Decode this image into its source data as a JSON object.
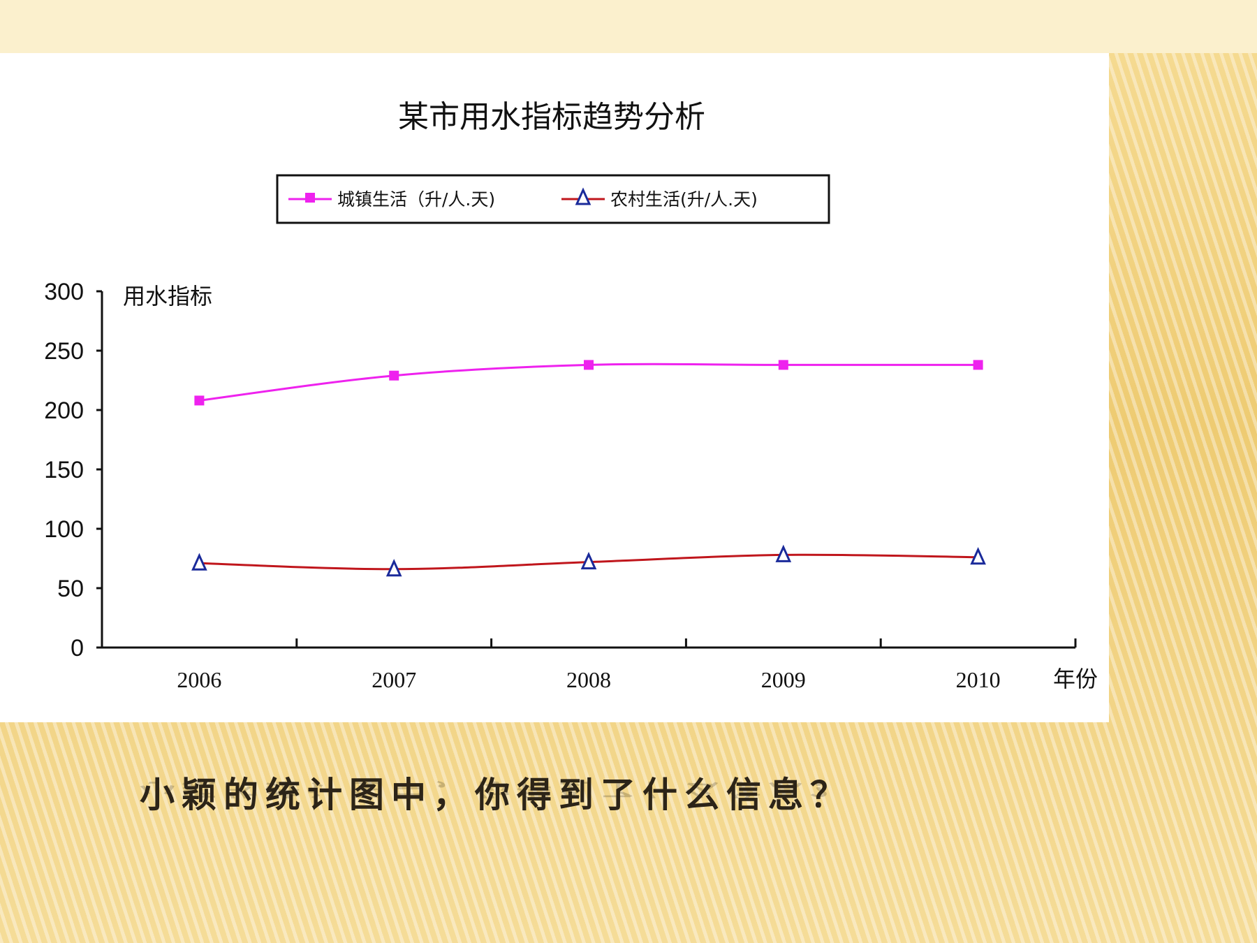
{
  "question": "小颖的统计图中，你得到了什么信息？",
  "chart_data": {
    "type": "line",
    "title": "某市用水指标趋势分析",
    "ylabel": "用水指标",
    "xlabel": "年份",
    "x": [
      "2006",
      "2007",
      "2008",
      "2009",
      "2010"
    ],
    "yticks": [
      0,
      50,
      100,
      150,
      200,
      250,
      300
    ],
    "ylim": [
      0,
      300
    ],
    "grid": false,
    "legend_placement": "top-center",
    "series": [
      {
        "name": "城镇生活（升/人.天)",
        "values": [
          208,
          229,
          238,
          238,
          238
        ],
        "color": "#ee22ee",
        "marker": "square"
      },
      {
        "name": "农村生活(升/人.天)",
        "values": [
          71,
          66,
          72,
          78,
          76
        ],
        "color": "#c0161c",
        "marker": "triangle",
        "marker_color": "#1a2a9a"
      }
    ]
  }
}
